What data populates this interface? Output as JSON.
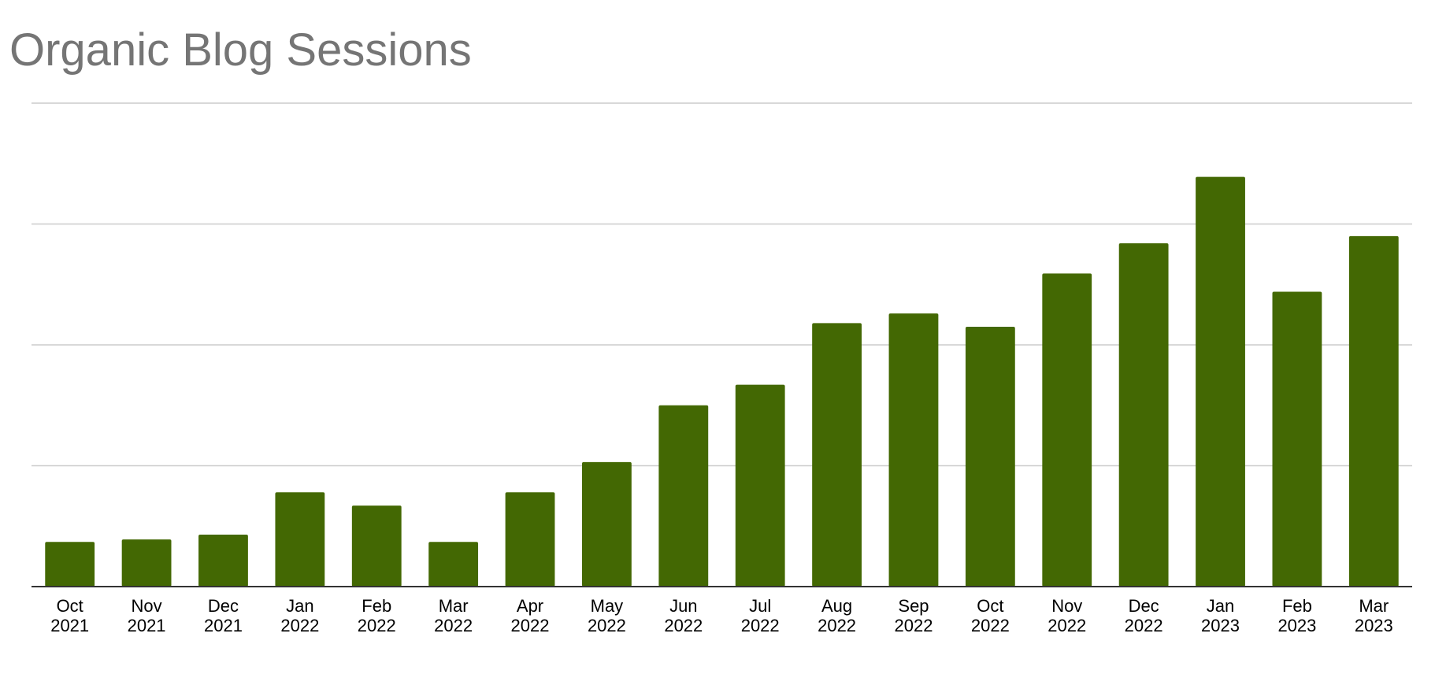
{
  "chart_data": {
    "type": "bar",
    "title": "Organic Blog Sessions",
    "xlabel": "",
    "ylabel": "",
    "categories": [
      [
        "Oct",
        "2021"
      ],
      [
        "Nov",
        "2021"
      ],
      [
        "Dec",
        "2021"
      ],
      [
        "Jan",
        "2022"
      ],
      [
        "Feb",
        "2022"
      ],
      [
        "Mar",
        "2022"
      ],
      [
        "Apr",
        "2022"
      ],
      [
        "May",
        "2022"
      ],
      [
        "Jun",
        "2022"
      ],
      [
        "Jul",
        "2022"
      ],
      [
        "Aug",
        "2022"
      ],
      [
        "Sep",
        "2022"
      ],
      [
        "Oct",
        "2022"
      ],
      [
        "Nov",
        "2022"
      ],
      [
        "Dec",
        "2022"
      ],
      [
        "Jan",
        "2023"
      ],
      [
        "Feb",
        "2023"
      ],
      [
        "Mar",
        "2023"
      ]
    ],
    "values": [
      0.37,
      0.39,
      0.43,
      0.78,
      0.67,
      0.37,
      0.78,
      1.03,
      1.5,
      1.67,
      2.18,
      2.26,
      2.15,
      2.59,
      2.84,
      3.39,
      2.44,
      2.9
    ],
    "ylim": [
      0,
      4
    ],
    "yticks": [
      0,
      1,
      2,
      3,
      4
    ],
    "y_tick_labels_shown": false,
    "grid": true,
    "legend": "none",
    "colors": {
      "bar": "#436803",
      "grid": "#cccccc",
      "axis": "#333333",
      "title": "#757575"
    }
  }
}
